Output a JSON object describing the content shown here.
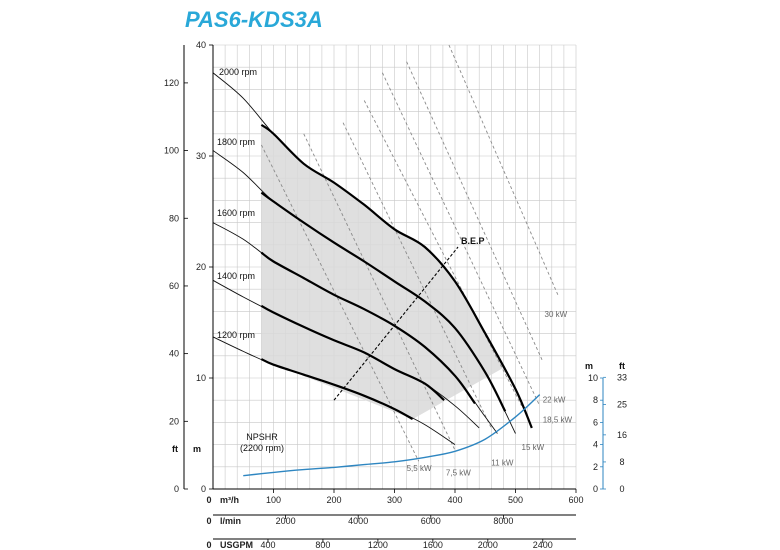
{
  "title": "PAS6-KDS3A",
  "colors": {
    "title": "#29a8d8",
    "npsh": "#2e86c1",
    "region": "#d9d9d9",
    "grid": "#c8c8c8",
    "power": "#8a8a8a"
  },
  "chart_data": {
    "type": "line",
    "title": "PAS6-KDS3A",
    "grid": true,
    "x_axis": {
      "label": "m³/h",
      "prefix": "0",
      "range": [
        0,
        600
      ],
      "ticks": [
        "100",
        "200",
        "300",
        "400",
        "500",
        "600"
      ]
    },
    "x_axis_lmin": {
      "label": "l/min",
      "prefix": "0",
      "range": [
        0,
        10000
      ],
      "ticks": [
        "2000",
        "4000",
        "6000",
        "8000"
      ]
    },
    "x_axis_usgpm": {
      "label": "USGPM",
      "prefix": "0",
      "range": [
        0,
        2641.7
      ],
      "ticks": [
        "400",
        "800",
        "1200",
        "1600",
        "2000",
        "2400"
      ]
    },
    "y_axis_m": {
      "label": "m",
      "range": [
        0,
        40
      ],
      "ticks": [
        "0",
        "10",
        "20",
        "30",
        "40"
      ]
    },
    "y_axis_ft": {
      "label": "ft",
      "range": [
        0,
        131.2
      ],
      "ticks": [
        "0",
        "20",
        "40",
        "60",
        "80",
        "100",
        "120"
      ]
    },
    "npsh_axis_m": {
      "label": "m",
      "range": [
        0,
        10
      ],
      "ticks": [
        "0",
        "2",
        "4",
        "6",
        "8",
        "10"
      ]
    },
    "npsh_axis_ft": {
      "label": "ft",
      "range": [
        0,
        32.8
      ],
      "ticks": [
        "0",
        "8",
        "16",
        "25",
        "33"
      ]
    },
    "series": [
      {
        "name": "2000 rpm",
        "points": [
          [
            0,
            37.5
          ],
          [
            50,
            35.2
          ],
          [
            100,
            32.0
          ],
          [
            150,
            29.3
          ],
          [
            200,
            27.6
          ],
          [
            250,
            25.6
          ],
          [
            300,
            23.4
          ],
          [
            350,
            21.8
          ],
          [
            400,
            18.7
          ],
          [
            450,
            14.0
          ],
          [
            500,
            9.0
          ],
          [
            527,
            5.5
          ]
        ],
        "bold": [
          [
            80,
            32.8
          ],
          [
            100,
            32.0
          ],
          [
            150,
            29.3
          ],
          [
            200,
            27.6
          ],
          [
            250,
            25.6
          ],
          [
            300,
            23.4
          ],
          [
            350,
            21.8
          ],
          [
            400,
            18.7
          ],
          [
            450,
            14.0
          ],
          [
            500,
            9.0
          ],
          [
            527,
            5.5
          ]
        ]
      },
      {
        "name": "1800 rpm",
        "points": [
          [
            0,
            30.5
          ],
          [
            50,
            28.5
          ],
          [
            100,
            25.9
          ],
          [
            150,
            24.0
          ],
          [
            200,
            22.2
          ],
          [
            250,
            20.5
          ],
          [
            300,
            18.7
          ],
          [
            350,
            16.9
          ],
          [
            400,
            14.5
          ],
          [
            450,
            10.5
          ],
          [
            500,
            5.0
          ]
        ],
        "bold": [
          [
            80,
            26.7
          ],
          [
            100,
            25.9
          ],
          [
            150,
            24.0
          ],
          [
            200,
            22.2
          ],
          [
            250,
            20.5
          ],
          [
            300,
            18.7
          ],
          [
            350,
            16.9
          ],
          [
            400,
            14.5
          ],
          [
            450,
            10.5
          ],
          [
            483,
            7.0
          ]
        ]
      },
      {
        "name": "1600 rpm",
        "points": [
          [
            0,
            24.0
          ],
          [
            50,
            22.5
          ],
          [
            100,
            20.5
          ],
          [
            150,
            19.0
          ],
          [
            200,
            17.5
          ],
          [
            250,
            16.2
          ],
          [
            300,
            14.7
          ],
          [
            350,
            12.8
          ],
          [
            400,
            10.2
          ],
          [
            450,
            6.5
          ],
          [
            470,
            5.0
          ]
        ],
        "bold": [
          [
            80,
            21.3
          ],
          [
            100,
            20.5
          ],
          [
            150,
            19.0
          ],
          [
            200,
            17.5
          ],
          [
            250,
            16.2
          ],
          [
            300,
            14.7
          ],
          [
            350,
            12.8
          ],
          [
            400,
            10.2
          ],
          [
            433,
            7.7
          ]
        ]
      },
      {
        "name": "1400 rpm",
        "points": [
          [
            0,
            18.8
          ],
          [
            50,
            17.3
          ],
          [
            100,
            15.9
          ],
          [
            150,
            14.6
          ],
          [
            200,
            13.4
          ],
          [
            250,
            12.3
          ],
          [
            300,
            10.8
          ],
          [
            350,
            9.5
          ],
          [
            400,
            7.5
          ],
          [
            440,
            5.5
          ]
        ],
        "bold": [
          [
            80,
            16.5
          ],
          [
            100,
            15.9
          ],
          [
            150,
            14.6
          ],
          [
            200,
            13.4
          ],
          [
            250,
            12.3
          ],
          [
            300,
            10.8
          ],
          [
            350,
            9.5
          ],
          [
            382,
            8.0
          ]
        ]
      },
      {
        "name": "1200 rpm",
        "points": [
          [
            0,
            13.7
          ],
          [
            50,
            12.4
          ],
          [
            100,
            11.2
          ],
          [
            150,
            10.3
          ],
          [
            200,
            9.4
          ],
          [
            250,
            8.4
          ],
          [
            300,
            7.2
          ],
          [
            350,
            5.8
          ],
          [
            400,
            4.0
          ]
        ],
        "bold": [
          [
            80,
            11.7
          ],
          [
            100,
            11.2
          ],
          [
            150,
            10.3
          ],
          [
            200,
            9.4
          ],
          [
            250,
            8.4
          ],
          [
            300,
            7.2
          ],
          [
            330,
            6.3
          ]
        ]
      }
    ],
    "npshr": {
      "name": "NPSHR\n(2200 rpm)",
      "label_lines": [
        "NPSHR",
        "(2200 rpm)"
      ],
      "x": [
        50,
        100,
        150,
        200,
        250,
        300,
        350,
        400,
        450,
        500,
        540
      ],
      "y": [
        1.2,
        1.5,
        1.75,
        1.95,
        2.2,
        2.45,
        2.85,
        3.4,
        4.5,
        6.5,
        8.5
      ]
    },
    "bep": {
      "label": "B.E.P",
      "from": [
        200,
        8.0
      ],
      "to": [
        405,
        21.8
      ]
    },
    "operating_region": [
      [
        80,
        32.8
      ],
      [
        150,
        29.3
      ],
      [
        200,
        27.6
      ],
      [
        250,
        25.6
      ],
      [
        300,
        23.4
      ],
      [
        350,
        21.8
      ],
      [
        400,
        18.7
      ],
      [
        450,
        14.0
      ],
      [
        483,
        11.0
      ],
      [
        330,
        6.3
      ],
      [
        80,
        11.7
      ]
    ],
    "power_lines": [
      {
        "label": "5,5 kW",
        "points": [
          [
            80,
            31
          ],
          [
            340,
            2.5
          ]
        ],
        "label_at": [
          320,
          1.6
        ]
      },
      {
        "label": "7,5 kW",
        "points": [
          [
            150,
            32
          ],
          [
            400,
            3.5
          ]
        ],
        "label_at": [
          385,
          1.2
        ]
      },
      {
        "label": "11 kW",
        "points": [
          [
            215,
            33
          ],
          [
            460,
            5.5
          ]
        ],
        "label_at": [
          460,
          2.1
        ]
      },
      {
        "label": "15 kW",
        "points": [
          [
            250,
            35
          ],
          [
            510,
            7.5
          ]
        ],
        "label_at": [
          510,
          3.5
        ]
      },
      {
        "label": "18,5 kW",
        "points": [
          [
            280,
            37.5
          ],
          [
            540,
            7.5
          ]
        ],
        "label_at": [
          545,
          6.0
        ]
      },
      {
        "label": "22 kW",
        "points": [
          [
            320,
            38.5
          ],
          [
            545,
            11.5
          ]
        ],
        "label_at": [
          545,
          7.8
        ]
      },
      {
        "label": "30 kW",
        "points": [
          [
            390,
            40
          ],
          [
            570,
            17.5
          ]
        ],
        "label_at": [
          548,
          15.5
        ]
      }
    ]
  },
  "labels": {
    "ft_unit": "ft",
    "m_unit": "m",
    "npsh_m": "m",
    "npsh_ft": "ft",
    "zero": "0"
  }
}
